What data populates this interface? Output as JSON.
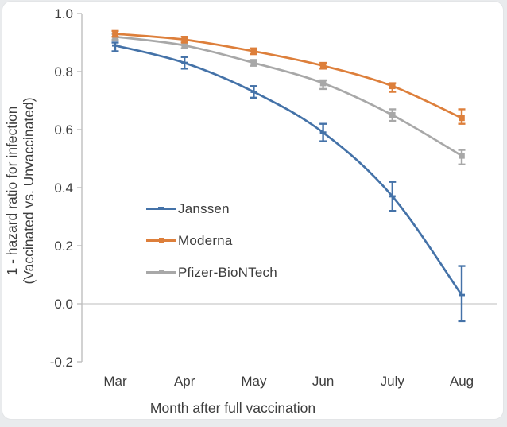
{
  "chart_data": {
    "type": "line",
    "title": "",
    "xlabel": "Month after full vaccination",
    "ylabel_line1": "1 - hazard ratio for infection",
    "ylabel_line2": "(Vaccinated vs. Unvaccinated)",
    "categories": [
      "Mar",
      "Apr",
      "May",
      "Jun",
      "July",
      "Aug"
    ],
    "yticks": [
      "1.0",
      "0.8",
      "0.6",
      "0.4",
      "0.2",
      "0.0",
      "-0.2"
    ],
    "ytick_values": [
      1.0,
      0.8,
      0.6,
      0.4,
      0.2,
      0.0,
      -0.2
    ],
    "ylim": [
      -0.2,
      1.0
    ],
    "grid": "single horizontal gridline at y=0",
    "legend_position": "inside plot, center-left",
    "colors": {
      "axis": "#bfbfbf",
      "gridline": "#c9c9c9",
      "text": "#3d3d3d"
    },
    "series": [
      {
        "name": "Janssen",
        "color": "#4472a8",
        "marker": "dash",
        "values": [
          0.89,
          0.83,
          0.73,
          0.59,
          0.37,
          0.03
        ],
        "ci_low": [
          0.87,
          0.81,
          0.71,
          0.56,
          0.32,
          -0.06
        ],
        "ci_high": [
          0.9,
          0.85,
          0.75,
          0.62,
          0.42,
          0.13
        ]
      },
      {
        "name": "Moderna",
        "color": "#dd7f3b",
        "marker": "square",
        "values": [
          0.93,
          0.91,
          0.87,
          0.82,
          0.75,
          0.64
        ],
        "ci_low": [
          0.92,
          0.9,
          0.86,
          0.81,
          0.73,
          0.62
        ],
        "ci_high": [
          0.94,
          0.92,
          0.88,
          0.83,
          0.76,
          0.67
        ]
      },
      {
        "name": "Pfizer-BioNTech",
        "color": "#a8a8a8",
        "marker": "square",
        "values": [
          0.92,
          0.89,
          0.83,
          0.76,
          0.65,
          0.51
        ],
        "ci_low": [
          0.91,
          0.88,
          0.82,
          0.74,
          0.63,
          0.48
        ],
        "ci_high": [
          0.93,
          0.9,
          0.84,
          0.77,
          0.67,
          0.53
        ]
      }
    ]
  }
}
